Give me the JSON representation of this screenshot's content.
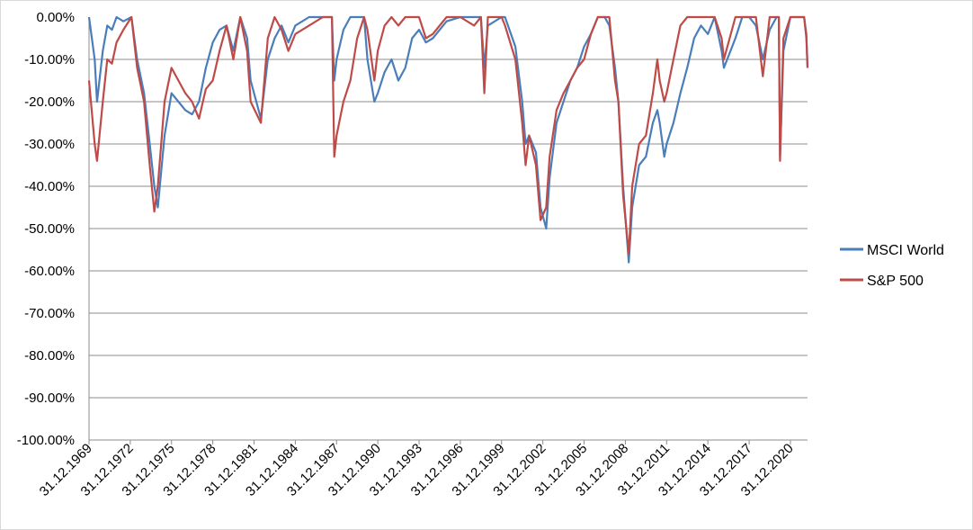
{
  "chart_data": {
    "type": "line",
    "title": "",
    "xlabel": "",
    "ylabel": "",
    "ylim": [
      -1.0,
      0.0
    ],
    "y_tick_labels": [
      "0.00%",
      "-10.00%",
      "-20.00%",
      "-30.00%",
      "-40.00%",
      "-50.00%",
      "-60.00%",
      "-70.00%",
      "-80.00%",
      "-90.00%",
      "-100.00%"
    ],
    "x_tick_labels": [
      "31.12.1969",
      "31.12.1972",
      "31.12.1975",
      "31.12.1978",
      "31.12.1981",
      "31.12.1984",
      "31.12.1987",
      "31.12.1990",
      "31.12.1993",
      "31.12.1996",
      "31.12.1999",
      "31.12.2002",
      "31.12.2005",
      "31.12.2008",
      "31.12.2011",
      "31.12.2014",
      "31.12.2017",
      "31.12.2020"
    ],
    "xlim": [
      "1969-12-31",
      "2022-03-31"
    ],
    "grid": true,
    "legend_position": "right",
    "series": [
      {
        "name": "MSCI World",
        "color": "#4a7ebb",
        "x": [
          "1969-12-31",
          "1970-05-31",
          "1970-07-31",
          "1970-12-31",
          "1971-04-30",
          "1971-08-31",
          "1971-12-31",
          "1972-06-30",
          "1973-01-31",
          "1973-06-30",
          "1973-12-31",
          "1974-05-31",
          "1974-09-30",
          "1974-12-31",
          "1975-06-30",
          "1975-12-31",
          "1976-06-30",
          "1976-12-31",
          "1977-06-30",
          "1977-12-31",
          "1978-06-30",
          "1978-12-31",
          "1979-06-30",
          "1979-12-31",
          "1980-06-30",
          "1980-12-31",
          "1981-06-30",
          "1981-09-30",
          "1982-06-30",
          "1982-12-31",
          "1983-06-30",
          "1983-12-31",
          "1984-06-30",
          "1984-12-31",
          "1985-12-31",
          "1986-12-31",
          "1987-08-31",
          "1987-10-31",
          "1987-12-31",
          "1988-06-30",
          "1988-12-31",
          "1989-06-30",
          "1989-12-31",
          "1990-03-31",
          "1990-09-30",
          "1990-12-31",
          "1991-06-30",
          "1991-12-31",
          "1992-06-30",
          "1992-12-31",
          "1993-06-30",
          "1993-12-31",
          "1994-06-30",
          "1994-12-31",
          "1995-12-31",
          "1996-12-31",
          "1997-12-31",
          "1998-06-30",
          "1998-09-30",
          "1998-12-31",
          "1999-12-31",
          "2000-03-31",
          "2000-12-31",
          "2001-06-30",
          "2001-09-30",
          "2001-12-31",
          "2002-06-30",
          "2002-10-31",
          "2003-03-31",
          "2003-06-30",
          "2003-12-31",
          "2004-06-30",
          "2004-12-31",
          "2005-06-30",
          "2005-12-31",
          "2006-06-30",
          "2006-12-31",
          "2007-06-30",
          "2007-10-31",
          "2008-03-31",
          "2008-06-30",
          "2008-10-31",
          "2009-03-31",
          "2009-06-30",
          "2009-12-31",
          "2010-06-30",
          "2010-12-31",
          "2011-04-30",
          "2011-06-30",
          "2011-10-31",
          "2011-12-31",
          "2012-06-30",
          "2012-12-31",
          "2013-06-30",
          "2013-12-31",
          "2014-06-30",
          "2014-12-31",
          "2015-06-30",
          "2015-12-31",
          "2016-02-29",
          "2016-12-31",
          "2017-06-30",
          "2017-12-31",
          "2018-06-30",
          "2018-12-31",
          "2019-06-30",
          "2019-12-31",
          "2020-02-29",
          "2020-03-31",
          "2020-06-30",
          "2020-12-31",
          "2021-06-30",
          "2021-12-31",
          "2022-02-28",
          "2022-03-31"
        ],
        "y": [
          0.0,
          -0.1,
          -0.2,
          -0.08,
          -0.02,
          -0.03,
          0.0,
          -0.01,
          0.0,
          -0.1,
          -0.18,
          -0.3,
          -0.4,
          -0.45,
          -0.28,
          -0.18,
          -0.2,
          -0.22,
          -0.23,
          -0.2,
          -0.12,
          -0.06,
          -0.03,
          -0.02,
          -0.08,
          0.0,
          -0.05,
          -0.15,
          -0.24,
          -0.1,
          -0.05,
          -0.02,
          -0.06,
          -0.02,
          0.0,
          0.0,
          0.0,
          -0.15,
          -0.1,
          -0.03,
          0.0,
          0.0,
          0.0,
          -0.1,
          -0.2,
          -0.18,
          -0.13,
          -0.1,
          -0.15,
          -0.12,
          -0.05,
          -0.03,
          -0.06,
          -0.05,
          -0.01,
          0.0,
          0.0,
          0.0,
          -0.12,
          -0.02,
          0.0,
          0.0,
          -0.07,
          -0.2,
          -0.3,
          -0.28,
          -0.32,
          -0.45,
          -0.5,
          -0.38,
          -0.25,
          -0.2,
          -0.15,
          -0.12,
          -0.07,
          -0.04,
          0.0,
          0.0,
          -0.02,
          -0.12,
          -0.2,
          -0.4,
          -0.58,
          -0.45,
          -0.35,
          -0.33,
          -0.25,
          -0.22,
          -0.25,
          -0.33,
          -0.3,
          -0.25,
          -0.18,
          -0.12,
          -0.05,
          -0.02,
          -0.04,
          0.0,
          -0.08,
          -0.12,
          -0.05,
          0.0,
          0.0,
          -0.02,
          -0.1,
          -0.03,
          0.0,
          0.0,
          -0.33,
          -0.08,
          0.0,
          0.0,
          0.0,
          -0.04,
          -0.12
        ]
      },
      {
        "name": "S&P 500",
        "color": "#be4b48",
        "x": [
          "1969-12-31",
          "1970-05-31",
          "1970-07-31",
          "1970-12-31",
          "1971-04-30",
          "1971-08-31",
          "1971-12-31",
          "1972-06-30",
          "1973-01-31",
          "1973-06-30",
          "1973-12-31",
          "1974-05-31",
          "1974-09-30",
          "1974-12-31",
          "1975-06-30",
          "1975-12-31",
          "1976-06-30",
          "1976-12-31",
          "1977-06-30",
          "1977-12-31",
          "1978-06-30",
          "1978-12-31",
          "1979-06-30",
          "1979-12-31",
          "1980-06-30",
          "1980-12-31",
          "1981-06-30",
          "1981-09-30",
          "1982-06-30",
          "1982-12-31",
          "1983-06-30",
          "1983-12-31",
          "1984-06-30",
          "1984-12-31",
          "1985-12-31",
          "1986-12-31",
          "1987-08-31",
          "1987-10-31",
          "1987-12-31",
          "1988-06-30",
          "1988-12-31",
          "1989-06-30",
          "1989-12-31",
          "1990-03-31",
          "1990-09-30",
          "1990-12-31",
          "1991-06-30",
          "1991-12-31",
          "1992-06-30",
          "1992-12-31",
          "1993-06-30",
          "1993-12-31",
          "1994-06-30",
          "1994-12-31",
          "1995-12-31",
          "1996-12-31",
          "1997-12-31",
          "1998-06-30",
          "1998-09-30",
          "1998-12-31",
          "1999-12-31",
          "2000-03-31",
          "2000-12-31",
          "2001-06-30",
          "2001-09-30",
          "2001-12-31",
          "2002-06-30",
          "2002-10-31",
          "2003-03-31",
          "2003-06-30",
          "2003-12-31",
          "2004-06-30",
          "2004-12-31",
          "2005-06-30",
          "2005-12-31",
          "2006-06-30",
          "2006-12-31",
          "2007-06-30",
          "2007-10-31",
          "2008-03-31",
          "2008-06-30",
          "2008-10-31",
          "2009-03-31",
          "2009-06-30",
          "2009-12-31",
          "2010-06-30",
          "2010-12-31",
          "2011-04-30",
          "2011-06-30",
          "2011-10-31",
          "2011-12-31",
          "2012-06-30",
          "2012-12-31",
          "2013-06-30",
          "2013-12-31",
          "2014-06-30",
          "2014-12-31",
          "2015-06-30",
          "2015-12-31",
          "2016-02-29",
          "2016-12-31",
          "2017-06-30",
          "2017-12-31",
          "2018-06-30",
          "2018-12-31",
          "2019-06-30",
          "2019-12-31",
          "2020-02-29",
          "2020-03-31",
          "2020-06-30",
          "2020-12-31",
          "2021-06-30",
          "2021-12-31",
          "2022-02-28",
          "2022-03-31"
        ],
        "y": [
          -0.15,
          -0.3,
          -0.34,
          -0.2,
          -0.1,
          -0.11,
          -0.06,
          -0.03,
          0.0,
          -0.12,
          -0.2,
          -0.35,
          -0.46,
          -0.4,
          -0.2,
          -0.12,
          -0.15,
          -0.18,
          -0.2,
          -0.24,
          -0.17,
          -0.15,
          -0.08,
          -0.02,
          -0.1,
          0.0,
          -0.08,
          -0.2,
          -0.25,
          -0.05,
          0.0,
          -0.03,
          -0.08,
          -0.04,
          -0.02,
          0.0,
          0.0,
          -0.33,
          -0.28,
          -0.2,
          -0.15,
          -0.05,
          0.0,
          -0.03,
          -0.15,
          -0.08,
          -0.02,
          0.0,
          -0.02,
          0.0,
          0.0,
          0.0,
          -0.05,
          -0.04,
          0.0,
          0.0,
          -0.02,
          0.0,
          -0.18,
          0.0,
          0.0,
          -0.02,
          -0.1,
          -0.25,
          -0.35,
          -0.28,
          -0.35,
          -0.48,
          -0.45,
          -0.33,
          -0.22,
          -0.18,
          -0.15,
          -0.12,
          -0.1,
          -0.04,
          0.0,
          0.0,
          0.0,
          -0.15,
          -0.2,
          -0.42,
          -0.56,
          -0.4,
          -0.3,
          -0.28,
          -0.18,
          -0.1,
          -0.15,
          -0.2,
          -0.18,
          -0.1,
          -0.02,
          0.0,
          0.0,
          0.0,
          0.0,
          0.0,
          -0.05,
          -0.1,
          0.0,
          0.0,
          0.0,
          0.0,
          -0.14,
          0.0,
          0.0,
          0.0,
          -0.34,
          -0.05,
          0.0,
          0.0,
          0.0,
          -0.05,
          -0.12
        ]
      }
    ]
  }
}
